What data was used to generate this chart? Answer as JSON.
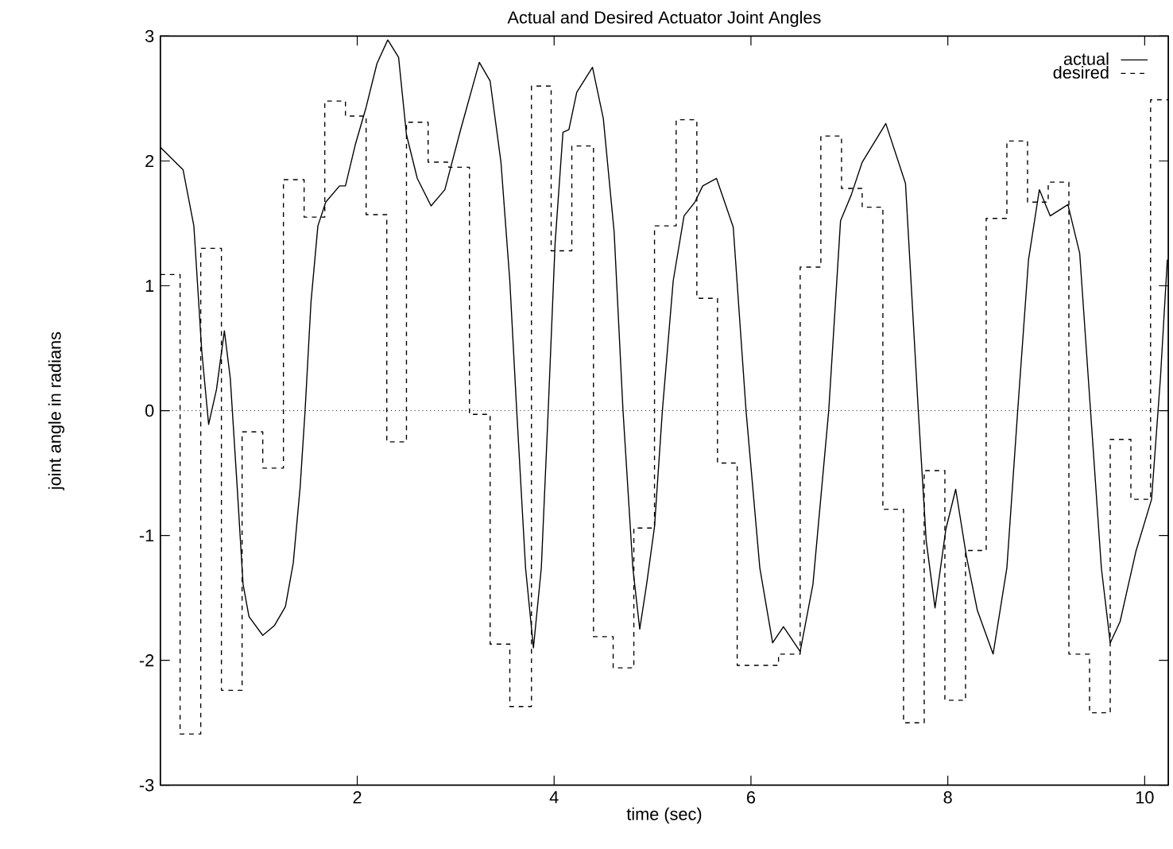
{
  "chart_data": {
    "type": "line",
    "title": "Actual and Desired Actuator Joint Angles",
    "xlabel": "time (sec)",
    "ylabel": "joint angle in radians",
    "xlim": [
      0,
      10.24
    ],
    "ylim": [
      -3,
      3
    ],
    "xticks": [
      2,
      4,
      6,
      8,
      10
    ],
    "yticks": [
      -3,
      -2,
      -1,
      0,
      1,
      2,
      3
    ],
    "grid": false,
    "legend": "top right",
    "marker": "none",
    "ref_lines": [
      {
        "axis": "y",
        "value": 0,
        "color": "#000000",
        "line_style": "dotted"
      }
    ],
    "series": [
      {
        "name": "actual",
        "color": "#000000",
        "line_style": "solid",
        "x": [
          0,
          0.23,
          0.34,
          0.42,
          0.49,
          0.57,
          0.65,
          0.71,
          0.78,
          0.84,
          0.9,
          1.04,
          1.16,
          1.27,
          1.35,
          1.42,
          1.47,
          1.53,
          1.6,
          1.68,
          1.82,
          1.88,
          1.98,
          2.09,
          2.2,
          2.31,
          2.42,
          2.5,
          2.61,
          2.75,
          2.89,
          3.05,
          3.24,
          3.35,
          3.46,
          3.55,
          3.62,
          3.71,
          3.79,
          3.87,
          3.94,
          4.01,
          4.09,
          4.15,
          4.23,
          4.39,
          4.5,
          4.61,
          4.7,
          4.8,
          4.87,
          4.94,
          5.02,
          5.1,
          5.21,
          5.32,
          5.43,
          5.51,
          5.65,
          5.82,
          5.95,
          6.09,
          6.22,
          6.33,
          6.5,
          6.63,
          6.79,
          6.91,
          7.02,
          7.13,
          7.37,
          7.57,
          7.7,
          7.78,
          7.87,
          7.98,
          8.08,
          8.19,
          8.3,
          8.46,
          8.6,
          8.71,
          8.82,
          8.93,
          9.04,
          9.22,
          9.34,
          9.45,
          9.56,
          9.65,
          9.75,
          9.91,
          10.07,
          10.16,
          10.23
        ],
        "values": [
          2.11,
          1.93,
          1.48,
          0.48,
          -0.11,
          0.17,
          0.64,
          0.26,
          -0.61,
          -1.39,
          -1.65,
          -1.8,
          -1.72,
          -1.57,
          -1.22,
          -0.61,
          0,
          0.87,
          1.48,
          1.67,
          1.8,
          1.8,
          2.13,
          2.43,
          2.78,
          2.97,
          2.83,
          2.21,
          1.86,
          1.64,
          1.77,
          2.25,
          2.79,
          2.64,
          1.99,
          1.04,
          0,
          -1.26,
          -1.9,
          -1.26,
          0,
          1.34,
          2.23,
          2.25,
          2.55,
          2.75,
          2.34,
          1.43,
          0,
          -1.26,
          -1.75,
          -1.39,
          -0.93,
          0,
          1.04,
          1.56,
          1.67,
          1.8,
          1.86,
          1.47,
          0,
          -1.26,
          -1.86,
          -1.73,
          -1.93,
          -1.39,
          0,
          1.52,
          1.73,
          1.99,
          2.3,
          1.82,
          0,
          -1.04,
          -1.58,
          -0.95,
          -0.63,
          -1.17,
          -1.6,
          -1.95,
          -1.26,
          0,
          1.21,
          1.77,
          1.56,
          1.65,
          1.26,
          0,
          -1.26,
          -1.86,
          -1.69,
          -1.13,
          -0.71,
          0.26,
          1.21
        ]
      },
      {
        "name": "desired",
        "type": "step",
        "color": "#000000",
        "line_style": "dashed",
        "x": [
          0,
          0.2,
          0.41,
          0.62,
          0.83,
          1.04,
          1.25,
          1.46,
          1.67,
          1.88,
          2.09,
          2.3,
          2.5,
          2.72,
          2.93,
          3.14,
          3.35,
          3.55,
          3.77,
          3.97,
          4.18,
          4.4,
          4.6,
          4.81,
          5.02,
          5.24,
          5.45,
          5.66,
          5.86,
          6.07,
          6.28,
          6.5,
          6.71,
          6.92,
          7.13,
          7.34,
          7.55,
          7.76,
          7.97,
          8.18,
          8.39,
          8.6,
          8.81,
          9.02,
          9.23,
          9.44,
          9.65,
          9.86,
          10.06,
          10.24
        ],
        "values": [
          1.09,
          -2.59,
          1.3,
          -2.24,
          -0.17,
          -0.46,
          1.85,
          1.55,
          2.48,
          2.36,
          1.57,
          -0.25,
          2.31,
          1.99,
          1.95,
          -0.03,
          -1.87,
          -2.37,
          2.6,
          1.28,
          2.12,
          -1.81,
          -2.06,
          -0.94,
          1.48,
          2.33,
          0.9,
          -0.42,
          -2.04,
          -2.04,
          -1.95,
          1.15,
          2.2,
          1.78,
          1.63,
          -0.79,
          -2.5,
          -0.48,
          -2.32,
          -1.12,
          1.54,
          2.16,
          1.67,
          1.83,
          -1.95,
          -2.42,
          -0.23,
          -0.71,
          2.49,
          2.49
        ]
      }
    ]
  }
}
